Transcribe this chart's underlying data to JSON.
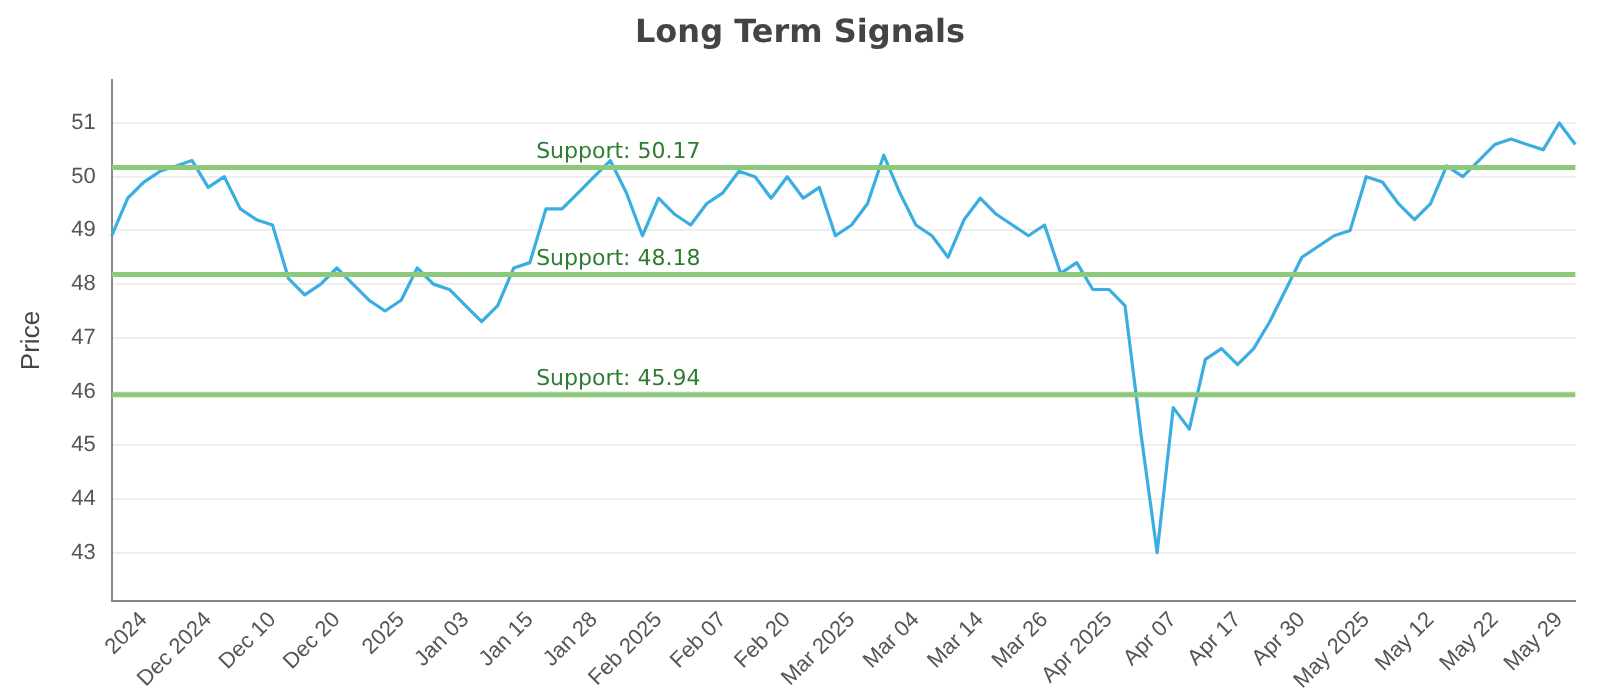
{
  "chart_data": {
    "type": "line",
    "title": "Long Term Signals",
    "ylabel": "Price",
    "categories": [
      null,
      null,
      "2024",
      null,
      null,
      null,
      "Dec 2024",
      null,
      null,
      null,
      "Dec 10",
      null,
      null,
      null,
      "Dec 20",
      null,
      null,
      null,
      "2025",
      null,
      null,
      null,
      "Jan 03",
      null,
      null,
      null,
      "Jan 15",
      null,
      null,
      null,
      "Jan 28",
      null,
      null,
      null,
      "Feb 2025",
      null,
      null,
      null,
      "Feb 07",
      null,
      null,
      null,
      "Feb 20",
      null,
      null,
      null,
      "Mar 2025",
      null,
      null,
      null,
      "Mar 04",
      null,
      null,
      null,
      "Mar 14",
      null,
      null,
      null,
      "Mar 26",
      null,
      null,
      null,
      "Apr 2025",
      null,
      null,
      null,
      "Apr 07",
      null,
      null,
      null,
      "Apr 17",
      null,
      null,
      null,
      "Apr 30",
      null,
      null,
      null,
      "May 2025",
      null,
      null,
      null,
      "May 12",
      null,
      null,
      null,
      "May 22",
      null,
      null,
      null,
      "May 29",
      null
    ],
    "series": [
      {
        "color": "#3aaee0",
        "values": [
          48.9,
          49.6,
          49.9,
          50.1,
          50.2,
          50.3,
          49.8,
          50.0,
          49.4,
          49.2,
          49.1,
          48.1,
          47.8,
          48.0,
          48.3,
          48.0,
          47.7,
          47.5,
          47.7,
          48.3,
          48.0,
          47.9,
          47.6,
          47.3,
          47.6,
          48.3,
          48.4,
          49.4,
          49.4,
          49.7,
          50.0,
          50.3,
          49.7,
          48.9,
          49.6,
          49.3,
          49.1,
          49.5,
          49.7,
          50.1,
          50.0,
          49.6,
          50.0,
          49.6,
          49.8,
          48.9,
          49.1,
          49.5,
          50.4,
          49.7,
          49.1,
          48.9,
          48.5,
          49.2,
          49.6,
          49.3,
          49.1,
          48.9,
          49.1,
          48.2,
          48.4,
          47.9,
          47.9,
          47.6,
          45.2,
          43.0,
          45.7,
          45.3,
          46.6,
          46.8,
          46.5,
          46.8,
          47.3,
          47.9,
          48.5,
          48.7,
          48.9,
          49.0,
          50.0,
          49.9,
          49.5,
          49.2,
          49.5,
          50.2,
          50.0,
          50.3,
          50.6,
          50.7,
          50.6,
          50.5,
          51.0,
          50.6
        ]
      }
    ],
    "ylim": [
      42.1,
      51.8
    ],
    "yticks": [
      43,
      44,
      45,
      46,
      47,
      48,
      49,
      50,
      51
    ],
    "ref_lines": [
      {
        "axis": "y",
        "value": 50.17,
        "label": "Support: 50.17",
        "color": "#8cc97a"
      },
      {
        "axis": "y",
        "value": 48.18,
        "label": "Support: 48.18",
        "color": "#8cc97a"
      },
      {
        "axis": "y",
        "value": 45.94,
        "label": "Support: 45.94",
        "color": "#8cc97a"
      }
    ],
    "grid": "y",
    "legend": false,
    "marker": "none",
    "line_style": "solid"
  }
}
